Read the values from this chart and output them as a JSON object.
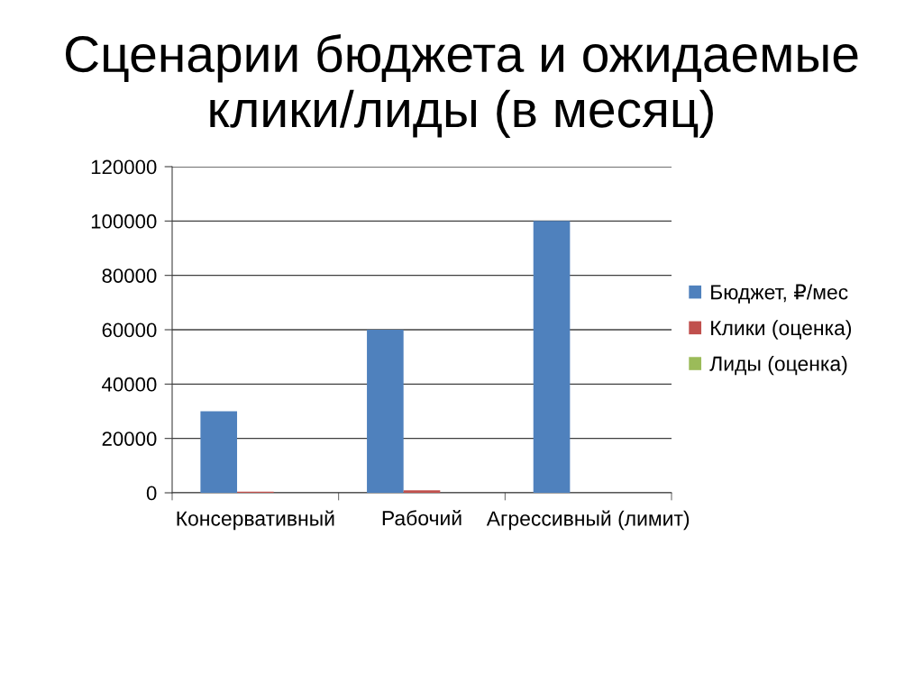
{
  "chart_data": {
    "type": "bar",
    "title": "Сценарии бюджета и ожидаемые\nклики/лиды (в месяц)",
    "categories": [
      "Консервативный",
      "Рабочий",
      "Агрессивный (лимит)"
    ],
    "series": [
      {
        "name": "Бюджет, ₽/мес",
        "color": "#4f81bd",
        "values": [
          30000,
          60000,
          100000
        ]
      },
      {
        "name": "Клики (оценка)",
        "color": "#c0504d",
        "values": [
          400,
          900,
          null
        ]
      },
      {
        "name": "Лиды (оценка)",
        "color": "#9bbb59",
        "values": [
          0,
          0,
          null
        ]
      }
    ],
    "ylim": [
      0,
      120000
    ],
    "yticks": [
      0,
      20000,
      40000,
      60000,
      80000,
      100000,
      120000
    ],
    "grid": "y",
    "legend": "right"
  }
}
